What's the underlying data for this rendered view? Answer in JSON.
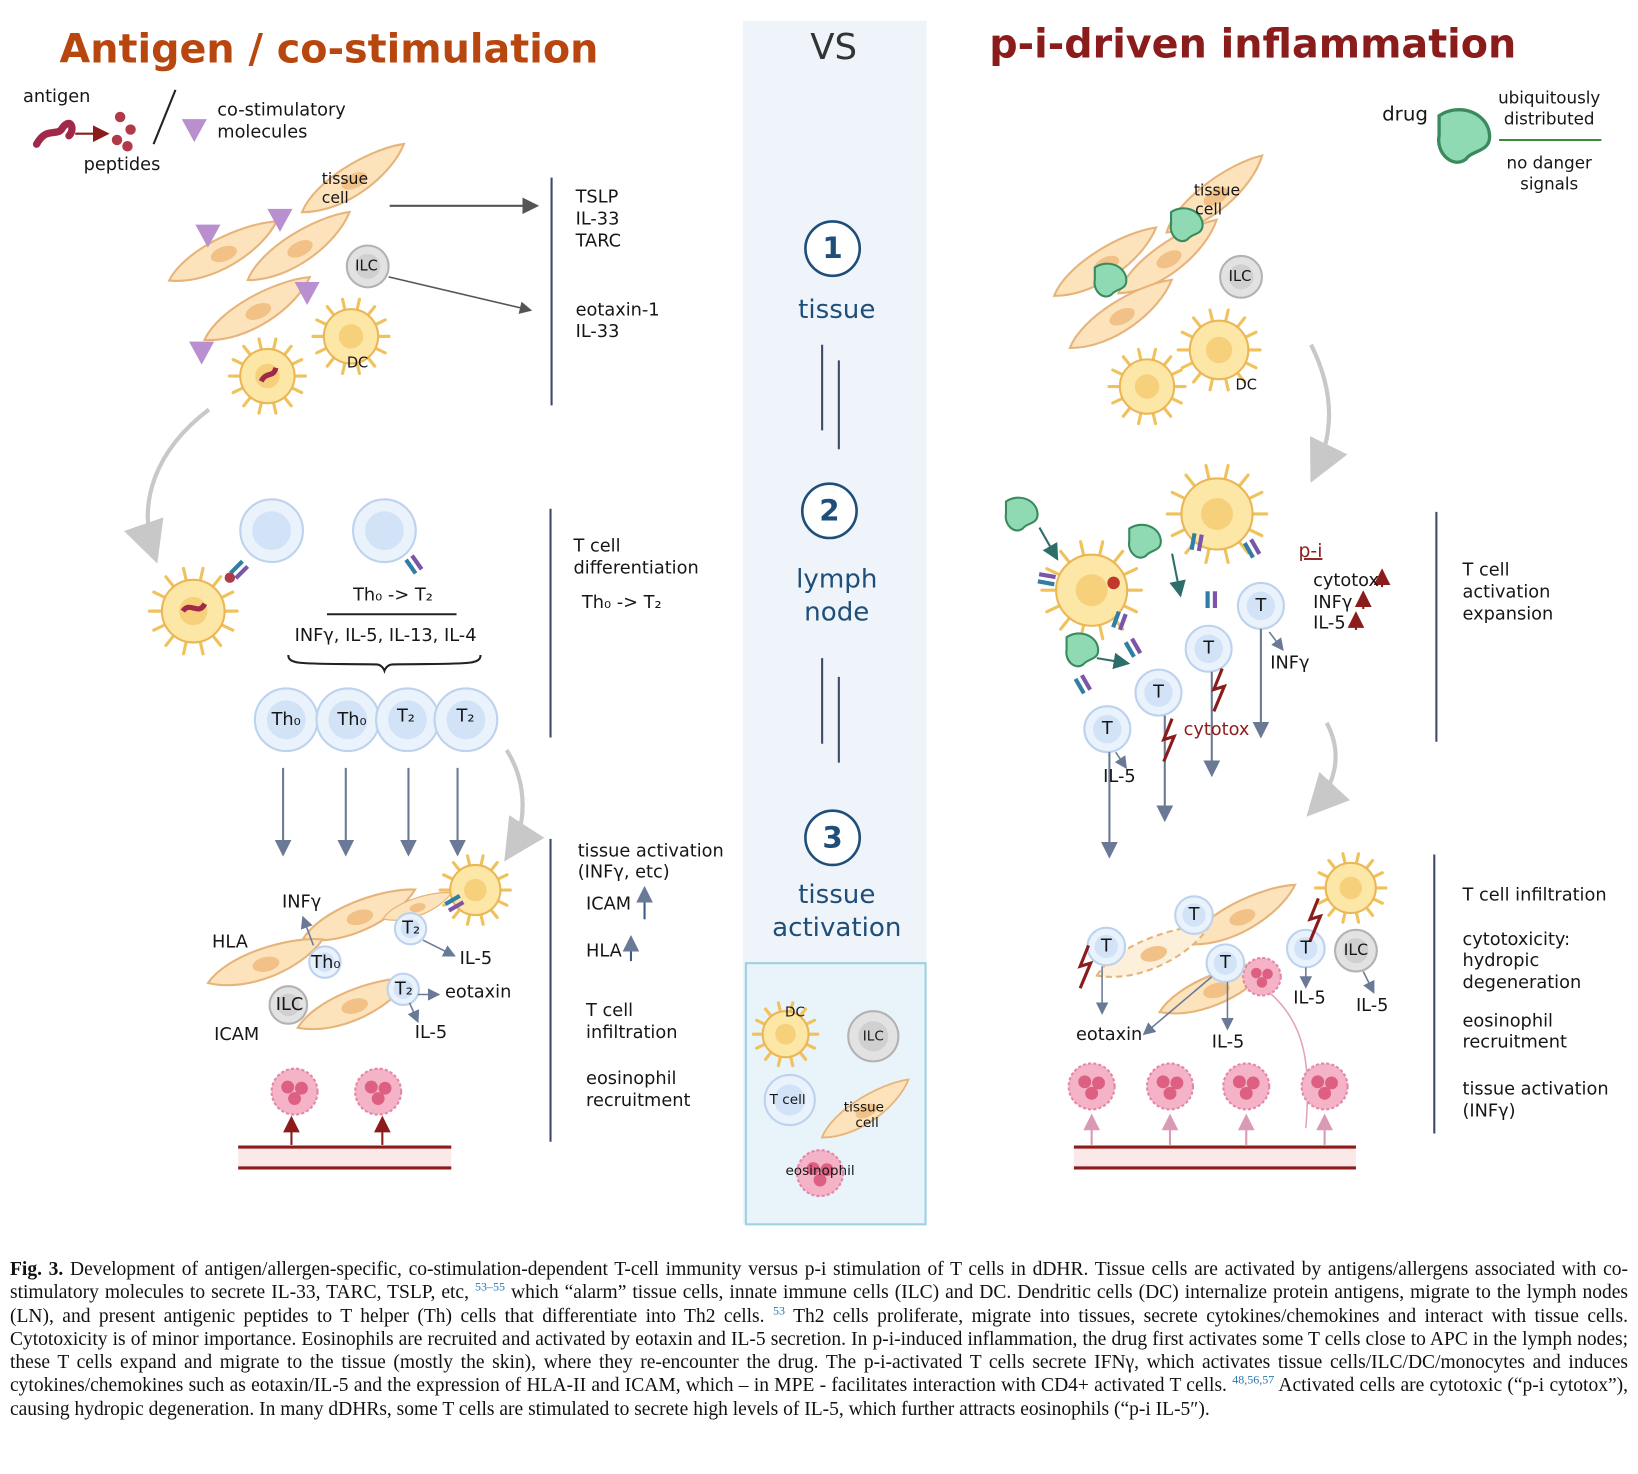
{
  "left": {
    "title": "Antigen / co-stimulation",
    "labels": [
      "antigen",
      "peptides",
      "co-stimulatory",
      "molecules",
      "tissue",
      "cell",
      "ILC",
      "DC",
      "Th₀ -> T₂",
      "INFγ, IL-5, IL-13, IL-4",
      "Th₀",
      "Th₀",
      "T₂",
      "T₂",
      "INFγ",
      "HLA",
      "Th₀",
      "T₂",
      "IL-5",
      "ILC",
      "T₂",
      "eotaxin",
      "ICAM",
      "IL-5"
    ],
    "steps": [
      [
        "TSLP",
        "IL-33",
        "TARC",
        "eotaxin-1",
        "IL-33"
      ],
      [
        "T cell",
        "differentiation",
        "Th₀ -> T₂"
      ],
      [
        "tissue   activation",
        "(INFγ, etc)",
        "ICAM",
        "HLA",
        "T cell",
        "infiltration",
        "eosinophil",
        "recruitment"
      ]
    ]
  },
  "center": {
    "vs": "VS",
    "steps": [
      {
        "number": "1",
        "lines": [
          "tissue"
        ]
      },
      {
        "number": "2",
        "lines": [
          "lymph",
          "node"
        ]
      },
      {
        "number": "3",
        "lines": [
          "tissue",
          "activation"
        ]
      }
    ],
    "legend": [
      "DC",
      "ILC",
      "T cell",
      "tissue",
      "cell",
      "eosinophil"
    ]
  },
  "right": {
    "title": "p-i-driven inflammation",
    "labels": [
      "drug",
      "ubiquitously",
      "distributed",
      "no danger",
      "signals",
      "tissue",
      "cell",
      "ILC",
      "DC",
      "p-i",
      "cytotox",
      "INFγ",
      "IL-5",
      "INFγ",
      "cytotox",
      "IL-5",
      "T",
      "T",
      "T",
      "T",
      "eotaxin",
      "IL-5",
      "IL-5",
      "IL-5",
      "ILC",
      "T",
      "T",
      "T",
      "T"
    ],
    "steps": [
      [
        "T cell",
        "activation",
        "expansion"
      ],
      [
        "T cell infiltration",
        "cytotoxicity:",
        "hydropic",
        "degeneration",
        "eosinophil",
        "recruitment",
        "tissue   activation",
        "(INFγ)"
      ]
    ]
  },
  "caption": {
    "label": "Fig. 3.",
    "runs": [
      {
        "text": "Development of antigen/allergen-specific, co-stimulation-dependent T-cell immunity versus p-i stimulation of T cells in dDHR. Tissue cells are activated by antigens/allergens associated with co-stimulatory molecules to secrete IL-33, TARC, TSLP, etc,"
      },
      {
        "sup": "53–55"
      },
      {
        "text": "which “alarm” tissue cells, innate immune cells (ILC) and DC. Dendritic cells (DC) internalize protein antigens, migrate to the lymph nodes (LN), and present antigenic peptides to T helper (Th) cells that differentiate into Th2 cells."
      },
      {
        "sup": "53"
      },
      {
        "text": "Th2 cells proliferate, migrate into tissues, secrete cytokines/chemokines and interact with tissue cells. Cytotoxicity is of minor importance. Eosinophils are recruited and activated by eotaxin and IL-5 secretion. In p-i-induced inflammation, the drug first activates some T cells close to APC in the lymph nodes; these T cells expand and migrate to the tissue (mostly the skin), where they re-encounter the drug. The p-i-activated T cells secrete IFNγ, which activates tissue cells/ILC/DC/monocytes and induces cytokines/chemokines such as eotaxin/IL-5 and the expression of HLA-II and ICAM, which – in MPE - facilitates interaction with CD4+ activated T cells."
      },
      {
        "sup": "48,56,57"
      },
      {
        "text": "Activated cells are cytotoxic (“p-i cytotox”), causing hydropic degeneration. In many dDHRs, some T cells are stimulated to secrete high levels of IL-5, which further attracts eosinophils (“p-i IL-5″)."
      }
    ]
  }
}
